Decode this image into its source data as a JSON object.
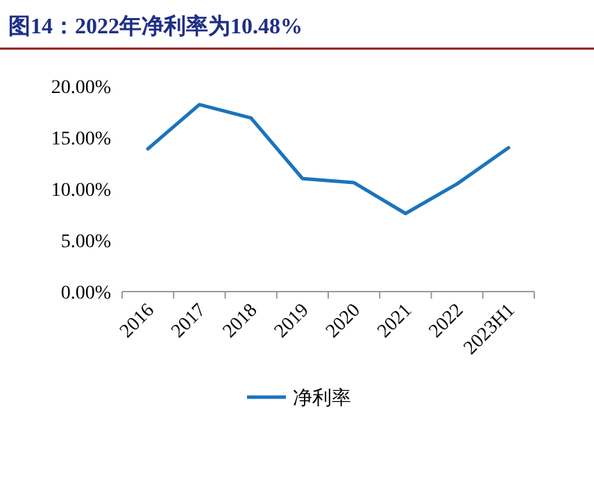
{
  "chart_data": {
    "type": "line",
    "title": "图14：2022年净利率为10.48%",
    "categories": [
      "2016",
      "2017",
      "2018",
      "2019",
      "2020",
      "2021",
      "2022",
      "2023H1"
    ],
    "series": [
      {
        "name": "净利率",
        "color": "#1a74bd",
        "values": [
          13.9,
          18.2,
          16.9,
          11.0,
          10.6,
          7.6,
          10.48,
          14.0
        ]
      }
    ],
    "ylim": [
      0,
      20
    ],
    "yticks": [
      {
        "value": 0,
        "label": "0.00%"
      },
      {
        "value": 5,
        "label": "5.00%"
      },
      {
        "value": 10,
        "label": "10.00%"
      },
      {
        "value": 15,
        "label": "15.00%"
      },
      {
        "value": 20,
        "label": "20.00%"
      }
    ],
    "legend": "bottom",
    "grid": false,
    "marker": "none",
    "line_style": "solid"
  }
}
